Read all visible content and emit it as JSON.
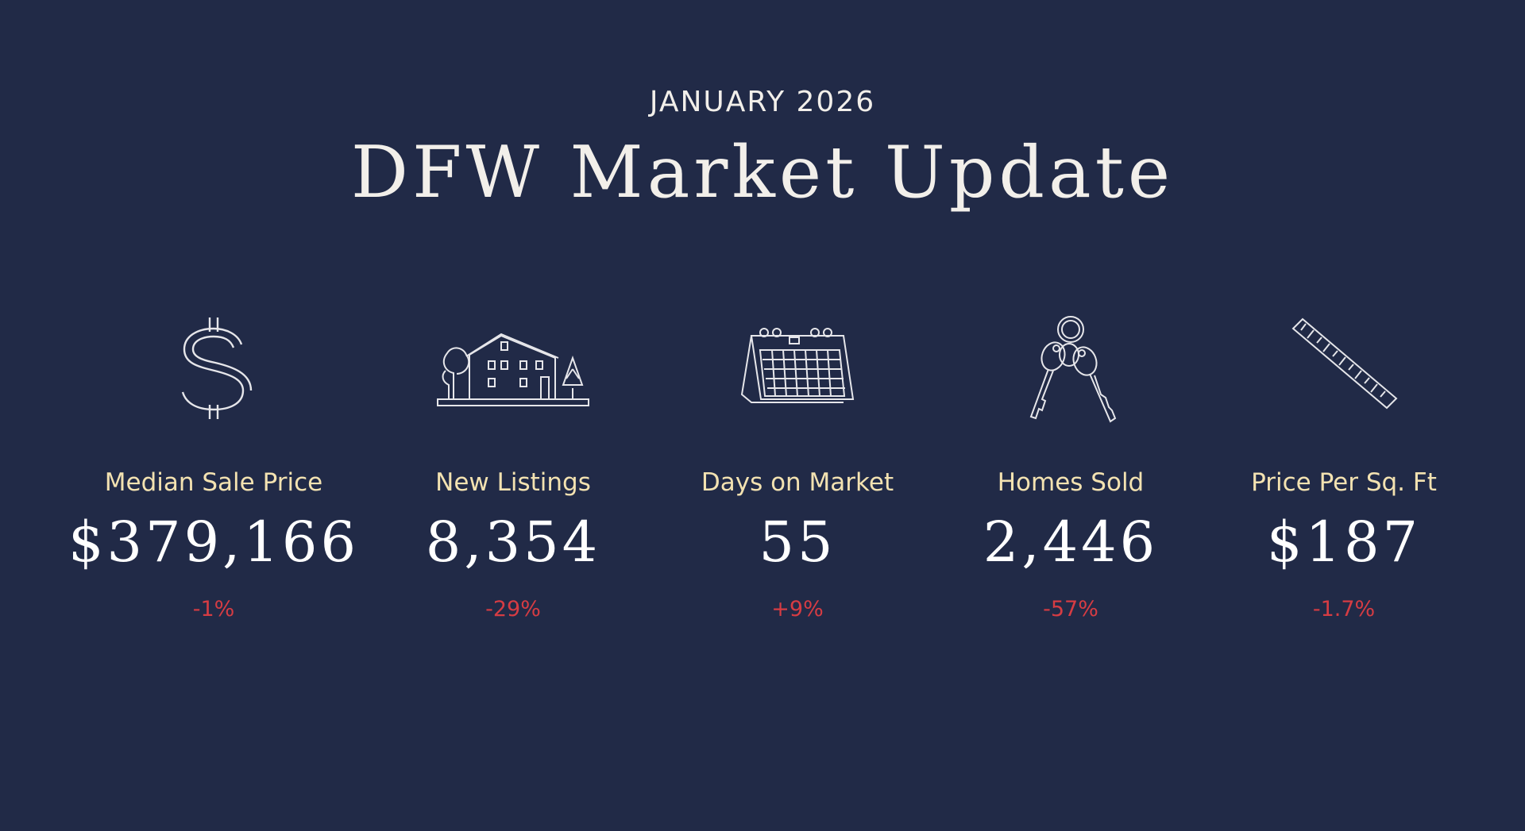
{
  "header": {
    "subtitle": "JANUARY 2026",
    "title": "DFW Market Update"
  },
  "stats": [
    {
      "icon": "dollar-sign-icon",
      "label": "Median Sale Price",
      "value": "$379,166",
      "change": "-1%"
    },
    {
      "icon": "house-icon",
      "label": "New Listings",
      "value": "8,354",
      "change": "-29%"
    },
    {
      "icon": "calendar-icon",
      "label": "Days on Market",
      "value": "55",
      "change": "+9%"
    },
    {
      "icon": "keys-icon",
      "label": "Homes Sold",
      "value": "2,446",
      "change": "-57%"
    },
    {
      "icon": "ruler-icon",
      "label": "Price Per Sq. Ft",
      "value": "$187",
      "change": "-1.7%"
    }
  ],
  "colors": {
    "background": "#212a47",
    "label": "#f3e2b1",
    "change": "#d63c43",
    "text": "#f2efea"
  }
}
